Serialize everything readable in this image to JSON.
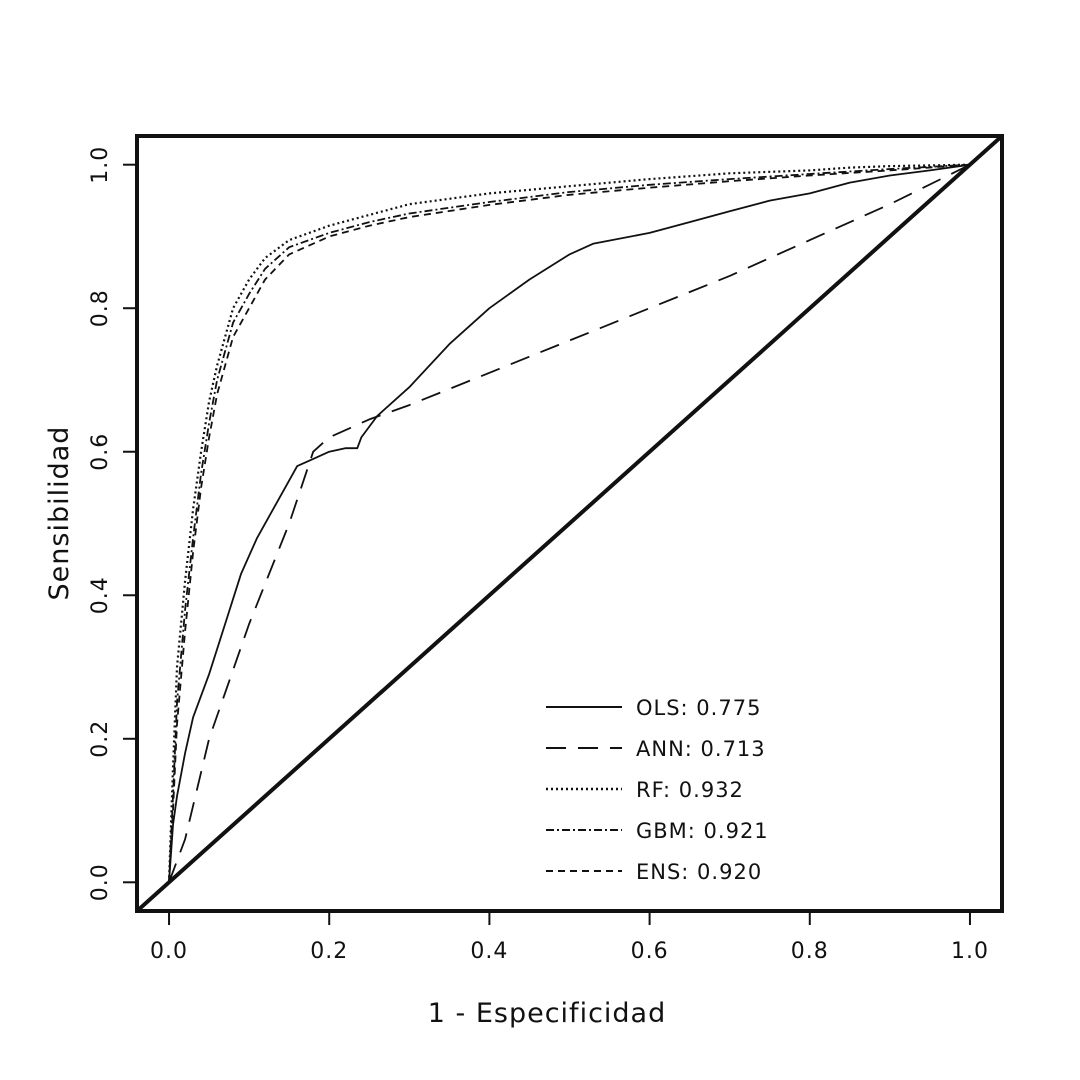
{
  "chart_data": {
    "type": "line",
    "title": "",
    "xlabel": "1 - Especificidad",
    "ylabel": "Sensibilidad",
    "xlim": [
      -0.04,
      1.04
    ],
    "ylim": [
      -0.04,
      1.04
    ],
    "x_ticks": [
      {
        "value": 0.0,
        "label": "0.0"
      },
      {
        "value": 0.2,
        "label": "0.2"
      },
      {
        "value": 0.4,
        "label": "0.4"
      },
      {
        "value": 0.6,
        "label": "0.6"
      },
      {
        "value": 0.8,
        "label": "0.8"
      },
      {
        "value": 1.0,
        "label": "1.0"
      }
    ],
    "y_ticks": [
      {
        "value": 0.0,
        "label": "0.0"
      },
      {
        "value": 0.2,
        "label": "0.2"
      },
      {
        "value": 0.4,
        "label": "0.4"
      },
      {
        "value": 0.6,
        "label": "0.6"
      },
      {
        "value": 0.8,
        "label": "0.8"
      },
      {
        "value": 1.0,
        "label": "1.0"
      }
    ],
    "grid": false,
    "legend_position": "bottom-right",
    "reference_line": {
      "x": [
        -0.04,
        1.04
      ],
      "y": [
        -0.04,
        1.04
      ]
    },
    "series": [
      {
        "name": "OLS: 0.775",
        "style": "solid",
        "x": [
          0.0,
          0.005,
          0.01,
          0.02,
          0.03,
          0.05,
          0.07,
          0.09,
          0.11,
          0.13,
          0.15,
          0.16,
          0.18,
          0.2,
          0.22,
          0.235,
          0.24,
          0.26,
          0.3,
          0.35,
          0.4,
          0.45,
          0.5,
          0.53,
          0.6,
          0.65,
          0.7,
          0.75,
          0.8,
          0.85,
          0.9,
          0.95,
          1.0
        ],
        "y": [
          0.0,
          0.08,
          0.12,
          0.18,
          0.23,
          0.29,
          0.36,
          0.43,
          0.48,
          0.52,
          0.56,
          0.58,
          0.59,
          0.6,
          0.605,
          0.605,
          0.62,
          0.65,
          0.69,
          0.75,
          0.8,
          0.84,
          0.875,
          0.89,
          0.905,
          0.92,
          0.935,
          0.95,
          0.96,
          0.975,
          0.985,
          0.992,
          1.0
        ]
      },
      {
        "name": "ANN: 0.713",
        "style": "longdash",
        "x": [
          0.0,
          0.02,
          0.05,
          0.1,
          0.15,
          0.18,
          0.2,
          0.25,
          0.3,
          0.4,
          0.5,
          0.6,
          0.7,
          0.8,
          0.9,
          1.0
        ],
        "y": [
          0.0,
          0.06,
          0.2,
          0.36,
          0.5,
          0.6,
          0.62,
          0.645,
          0.665,
          0.71,
          0.755,
          0.8,
          0.845,
          0.895,
          0.945,
          1.0
        ]
      },
      {
        "name": "RF: 0.932",
        "style": "dotted",
        "x": [
          0.0,
          0.005,
          0.01,
          0.02,
          0.03,
          0.04,
          0.05,
          0.06,
          0.07,
          0.08,
          0.1,
          0.12,
          0.15,
          0.2,
          0.25,
          0.3,
          0.4,
          0.5,
          0.6,
          0.7,
          0.8,
          0.85,
          0.9,
          0.95,
          1.0
        ],
        "y": [
          0.0,
          0.16,
          0.3,
          0.42,
          0.52,
          0.6,
          0.67,
          0.72,
          0.76,
          0.8,
          0.84,
          0.87,
          0.895,
          0.915,
          0.93,
          0.945,
          0.96,
          0.97,
          0.98,
          0.988,
          0.992,
          0.996,
          0.998,
          0.999,
          1.0
        ]
      },
      {
        "name": "GBM: 0.921",
        "style": "dotdash",
        "x": [
          0.0,
          0.005,
          0.01,
          0.02,
          0.03,
          0.04,
          0.05,
          0.06,
          0.07,
          0.08,
          0.1,
          0.12,
          0.15,
          0.2,
          0.25,
          0.3,
          0.4,
          0.5,
          0.6,
          0.7,
          0.8,
          0.9,
          1.0
        ],
        "y": [
          0.0,
          0.12,
          0.25,
          0.38,
          0.48,
          0.57,
          0.64,
          0.7,
          0.74,
          0.78,
          0.82,
          0.855,
          0.885,
          0.905,
          0.92,
          0.932,
          0.948,
          0.962,
          0.972,
          0.98,
          0.987,
          0.994,
          1.0
        ]
      },
      {
        "name": "ENS: 0.920",
        "style": "dashed",
        "x": [
          0.0,
          0.005,
          0.01,
          0.02,
          0.03,
          0.04,
          0.05,
          0.06,
          0.07,
          0.08,
          0.1,
          0.12,
          0.15,
          0.2,
          0.25,
          0.3,
          0.4,
          0.5,
          0.6,
          0.7,
          0.8,
          0.9,
          1.0
        ],
        "y": [
          0.0,
          0.1,
          0.22,
          0.35,
          0.46,
          0.55,
          0.62,
          0.68,
          0.72,
          0.76,
          0.8,
          0.84,
          0.875,
          0.9,
          0.915,
          0.927,
          0.944,
          0.958,
          0.968,
          0.977,
          0.985,
          0.992,
          1.0
        ]
      }
    ]
  }
}
